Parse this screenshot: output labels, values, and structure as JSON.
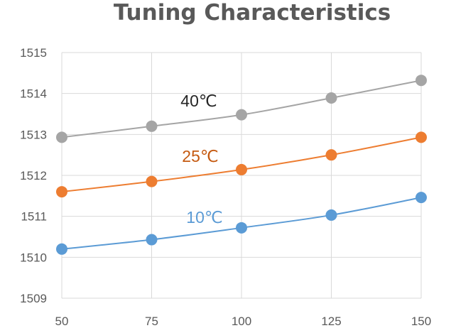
{
  "chart_data": {
    "type": "line",
    "title": "Tuning Characteristics",
    "xlabel": "",
    "ylabel": "",
    "x": [
      50,
      75,
      100,
      125,
      150
    ],
    "x_tick_labels": [
      "50",
      "75",
      "100",
      "125",
      "150"
    ],
    "xlim": [
      50,
      150
    ],
    "ylim": [
      1509,
      1515
    ],
    "y_ticks": [
      1509,
      1510,
      1511,
      1512,
      1513,
      1514,
      1515
    ],
    "y_tick_labels": [
      "1509",
      "1510",
      "1511",
      "1512",
      "1513",
      "1514",
      "1515"
    ],
    "grid": true,
    "series": [
      {
        "name": "40℃",
        "label": "40℃",
        "color": "#a5a5a5",
        "label_color": "#262626",
        "values": [
          1512.93,
          1513.2,
          1513.48,
          1513.89,
          1514.32
        ]
      },
      {
        "name": "25℃",
        "label": "25℃",
        "color": "#ed7d31",
        "label_color": "#c55a11",
        "values": [
          1511.6,
          1511.85,
          1512.14,
          1512.5,
          1512.93
        ]
      },
      {
        "name": "10℃",
        "label": "10℃",
        "color": "#5b9bd5",
        "label_color": "#5b9bd5",
        "values": [
          1510.2,
          1510.43,
          1510.72,
          1511.03,
          1511.46
        ]
      }
    ]
  }
}
